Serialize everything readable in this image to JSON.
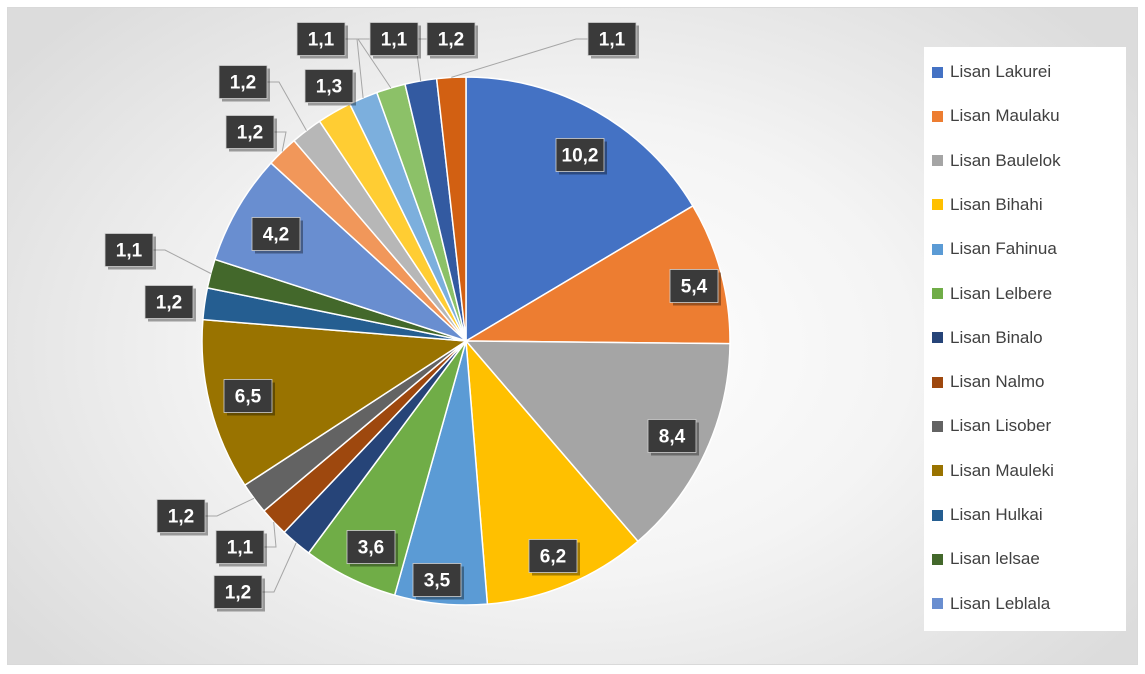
{
  "chart_data": {
    "type": "pie",
    "title": "",
    "legend_position": "right",
    "series": [
      {
        "name": "Lisan Lakurei",
        "value": 10.2,
        "label": "10,2",
        "color": "#4472c4"
      },
      {
        "name": "Lisan Maulaku",
        "value": 5.4,
        "label": "5,4",
        "color": "#ed7d31"
      },
      {
        "name": "Lisan Baulelok",
        "value": 8.4,
        "label": "8,4",
        "color": "#a5a5a5"
      },
      {
        "name": "Lisan Bihahi",
        "value": 6.2,
        "label": "6,2",
        "color": "#ffc000"
      },
      {
        "name": "Lisan Fahinua",
        "value": 3.5,
        "label": "3,5",
        "color": "#5b9bd5"
      },
      {
        "name": "Lisan Lelbere",
        "value": 3.6,
        "label": "3,6",
        "color": "#70ad47"
      },
      {
        "name": "Lisan Binalo",
        "value": 1.2,
        "label": "1,2",
        "color": "#264478"
      },
      {
        "name": "Lisan Nalmo",
        "value": 1.1,
        "label": "1,1",
        "color": "#9e480e"
      },
      {
        "name": "Lisan Lisober",
        "value": 1.2,
        "label": "1,2",
        "color": "#636363"
      },
      {
        "name": "Lisan Mauleki",
        "value": 6.5,
        "label": "6,5",
        "color": "#997300"
      },
      {
        "name": "Lisan Hulkai",
        "value": 1.2,
        "label": "1,2",
        "color": "#255e91"
      },
      {
        "name": "Lisan Ielsae",
        "value": 1.1,
        "label": "1,1",
        "color": "#43682b"
      },
      {
        "name": "Lisan Leblala",
        "value": 4.2,
        "label": "4,2",
        "color": "#698ed0"
      },
      {
        "name": "",
        "value": 1.2,
        "label": "1,2",
        "color": "#f1975a"
      },
      {
        "name": "",
        "value": 1.2,
        "label": "1,2",
        "color": "#b7b7b7"
      },
      {
        "name": "",
        "value": 1.3,
        "label": "1,3",
        "color": "#ffcd33"
      },
      {
        "name": "",
        "value": 1.1,
        "label": "1,1",
        "color": "#7cafdd"
      },
      {
        "name": "",
        "value": 1.1,
        "label": "1,1",
        "color": "#8cc168"
      },
      {
        "name": "",
        "value": 1.2,
        "label": "1,2",
        "color": "#335aa1"
      },
      {
        "name": "",
        "value": 1.1,
        "label": "1,1",
        "color": "#d26012"
      }
    ],
    "legend": [
      "Lisan Lakurei",
      "Lisan Maulaku",
      "Lisan Baulelok",
      "Lisan Bihahi",
      "Lisan Fahinua",
      "Lisan Lelbere",
      "Lisan Binalo",
      "Lisan Nalmo",
      "Lisan Lisober",
      "Lisan Mauleki",
      "Lisan Hulkai",
      "Lisan lelsae",
      "Lisan Leblala"
    ]
  }
}
